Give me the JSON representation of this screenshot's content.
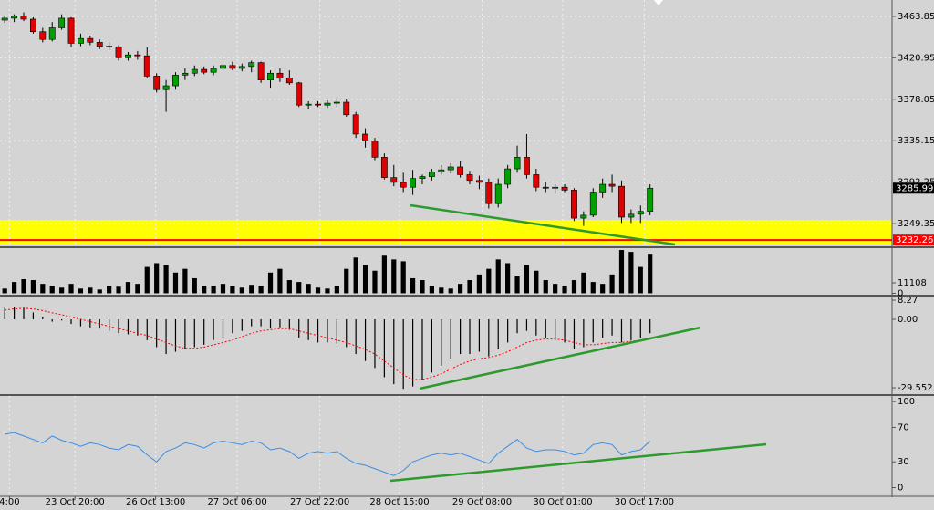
{
  "chart_data": [
    {
      "type": "candlestick",
      "open": [
        3460,
        3462,
        3464,
        3461,
        3448,
        3440,
        3452,
        3462,
        3436,
        3441,
        3437,
        3433,
        3432,
        3421,
        3424,
        3423,
        3402,
        3388,
        3392,
        3403,
        3405,
        3409,
        3406,
        3410,
        3413,
        3410,
        3412,
        3416,
        3398,
        3405,
        3400,
        3395,
        3372,
        3373,
        3372,
        3374,
        3375,
        3362,
        3342,
        3335,
        3318,
        3297,
        3292,
        3287,
        3296,
        3298,
        3303,
        3305,
        3308,
        3300,
        3294,
        3292,
        3270,
        3290,
        3306,
        3318,
        3300,
        3287,
        3286,
        3287,
        3284,
        3255,
        3258,
        3282,
        3290,
        3288,
        3256,
        3259,
        3262
      ],
      "high": [
        3465,
        3466,
        3468,
        3463,
        3452,
        3458,
        3466,
        3463,
        3446,
        3444,
        3440,
        3437,
        3434,
        3427,
        3428,
        3432,
        3405,
        3398,
        3406,
        3410,
        3413,
        3412,
        3413,
        3415,
        3417,
        3415,
        3418,
        3417,
        3408,
        3410,
        3408,
        3396,
        3376,
        3376,
        3377,
        3378,
        3378,
        3365,
        3348,
        3338,
        3322,
        3310,
        3302,
        3305,
        3300,
        3306,
        3310,
        3312,
        3314,
        3304,
        3299,
        3296,
        3296,
        3310,
        3330,
        3342,
        3306,
        3292,
        3290,
        3290,
        3286,
        3262,
        3286,
        3296,
        3300,
        3294,
        3264,
        3268,
        3290
      ],
      "low": [
        3457,
        3458,
        3459,
        3446,
        3437,
        3438,
        3450,
        3432,
        3433,
        3434,
        3430,
        3429,
        3418,
        3418,
        3419,
        3400,
        3385,
        3365,
        3388,
        3398,
        3402,
        3404,
        3403,
        3407,
        3408,
        3407,
        3406,
        3395,
        3390,
        3396,
        3393,
        3370,
        3368,
        3370,
        3369,
        3370,
        3360,
        3338,
        3328,
        3315,
        3295,
        3288,
        3282,
        3279,
        3290,
        3294,
        3300,
        3301,
        3297,
        3290,
        3285,
        3265,
        3266,
        3286,
        3302,
        3296,
        3283,
        3282,
        3280,
        3282,
        3252,
        3247,
        3256,
        3276,
        3282,
        3250,
        3250,
        3250,
        3258
      ],
      "close": [
        3462,
        3464,
        3461,
        3448,
        3440,
        3452,
        3462,
        3436,
        3441,
        3437,
        3433,
        3432,
        3421,
        3424,
        3423,
        3402,
        3388,
        3392,
        3403,
        3405,
        3409,
        3406,
        3410,
        3413,
        3410,
        3412,
        3416,
        3398,
        3405,
        3400,
        3395,
        3372,
        3373,
        3372,
        3374,
        3375,
        3362,
        3342,
        3335,
        3318,
        3297,
        3292,
        3287,
        3296,
        3298,
        3303,
        3305,
        3308,
        3300,
        3294,
        3292,
        3270,
        3290,
        3306,
        3318,
        3300,
        3287,
        3286,
        3287,
        3284,
        3255,
        3258,
        3282,
        3290,
        3288,
        3256,
        3259,
        3262,
        3285.99
      ],
      "up_color": "#00a000",
      "down_color": "#e00000",
      "xlim": [
        -0.5,
        93.5
      ],
      "ylim": [
        3225.8,
        3480.8
      ],
      "yticks": [
        3463.85,
        3420.95,
        3378.05,
        3335.15,
        3292.25,
        3249.35
      ],
      "grid": true,
      "last_price": 3285.99,
      "levels": [
        {
          "value": 3232.26,
          "color": "#ff0000"
        }
      ]
    },
    {
      "type": "bar",
      "values": [
        5000,
        12000,
        15000,
        14000,
        10000,
        8000,
        6000,
        10000,
        5000,
        6000,
        4000,
        8000,
        7000,
        12000,
        10000,
        28000,
        32000,
        30000,
        22000,
        26000,
        16000,
        8000,
        8000,
        10000,
        8000,
        6000,
        9000,
        8000,
        22000,
        26000,
        14000,
        12000,
        10000,
        6000,
        5000,
        8000,
        26000,
        38000,
        30000,
        24000,
        40000,
        36000,
        34000,
        16000,
        14000,
        8000,
        6000,
        5000,
        10000,
        14000,
        20000,
        26000,
        36000,
        32000,
        18000,
        30000,
        24000,
        14000,
        10000,
        8000,
        14000,
        22000,
        12000,
        10000,
        20000,
        46000,
        44000,
        28000,
        42000
      ],
      "color": "#000000",
      "xlim": [
        -0.5,
        93.5
      ],
      "ylim": [
        -1500,
        48000
      ],
      "yticks": [
        11108,
        0
      ]
    },
    {
      "type": "macd",
      "values": [
        5,
        5.5,
        5,
        3,
        1,
        -1,
        -0.5,
        -2,
        -3,
        -3.5,
        -4,
        -5,
        -6,
        -6.5,
        -7,
        -9,
        -12,
        -15,
        -14,
        -13,
        -12,
        -11,
        -9,
        -8,
        -6,
        -5,
        -3,
        -3,
        -4,
        -3.5,
        -4.5,
        -8,
        -9,
        -10,
        -10,
        -10.5,
        -12,
        -15,
        -18,
        -21,
        -25,
        -28,
        -30,
        -29,
        -26,
        -23,
        -20,
        -17,
        -15,
        -15,
        -14,
        -16,
        -13,
        -10,
        -6,
        -5,
        -7,
        -8,
        -9,
        -10,
        -13,
        -12,
        -10,
        -8,
        -7,
        -10,
        -9,
        -8,
        -6
      ],
      "signal": [
        4,
        4.5,
        4.8,
        4.5,
        3.8,
        2.8,
        2,
        1,
        0,
        -1,
        -2,
        -3,
        -4,
        -5,
        -6,
        -7,
        -8.5,
        -10,
        -11.5,
        -12.5,
        -12.5,
        -12,
        -11,
        -10,
        -9,
        -7.5,
        -6,
        -5,
        -4.5,
        -4,
        -4,
        -5,
        -6,
        -7,
        -8,
        -9,
        -10,
        -11.5,
        -13,
        -15,
        -18,
        -21,
        -24,
        -26,
        -26,
        -25,
        -23.5,
        -21.5,
        -19.5,
        -18,
        -17,
        -16.5,
        -15.5,
        -14,
        -12,
        -10,
        -9,
        -8.5,
        -8.5,
        -9,
        -10,
        -11,
        -11,
        -10.5,
        -10,
        -10,
        -9.5,
        -9,
        -8.5
      ],
      "color": "#000000",
      "signal_color": "#ff0000",
      "xlim": [
        -0.5,
        93.5
      ],
      "ylim": [
        -32.3,
        9.85
      ],
      "yticks": [
        8.27,
        {
          "value": 0,
          "label": "0.00"
        },
        -29.552
      ]
    },
    {
      "type": "line",
      "values": [
        62,
        64,
        60,
        56,
        52,
        60,
        55,
        52,
        48,
        52,
        50,
        46,
        44,
        50,
        48,
        38,
        30,
        42,
        46,
        52,
        50,
        46,
        52,
        54,
        52,
        50,
        54,
        52,
        44,
        46,
        42,
        34,
        40,
        42,
        40,
        42,
        34,
        28,
        26,
        22,
        18,
        14,
        20,
        30,
        34,
        38,
        40,
        38,
        40,
        36,
        32,
        28,
        40,
        48,
        56,
        46,
        42,
        44,
        44,
        42,
        38,
        40,
        50,
        52,
        50,
        38,
        42,
        44,
        54
      ],
      "color": "#3a8ee6",
      "xlim": [
        -0.5,
        93.5
      ],
      "ylim": [
        -9,
        106.5
      ],
      "yticks": [
        100,
        70,
        30,
        0
      ],
      "xticks": [
        {
          "value": 0.5,
          "label": "4:00"
        },
        {
          "value": 7.4,
          "label": "23 Oct 20:00"
        },
        {
          "value": 15.9,
          "label": "26 Oct 13:00"
        },
        {
          "value": 24.5,
          "label": "27 Oct 06:00"
        },
        {
          "value": 33.2,
          "label": "27 Oct 22:00"
        },
        {
          "value": 41.6,
          "label": "28 Oct 15:00"
        },
        {
          "value": 50.3,
          "label": "29 Oct 08:00"
        },
        {
          "value": 58.8,
          "label": "30 Oct 01:00"
        },
        {
          "value": 67.4,
          "label": "30 Oct 17:00"
        }
      ]
    }
  ]
}
